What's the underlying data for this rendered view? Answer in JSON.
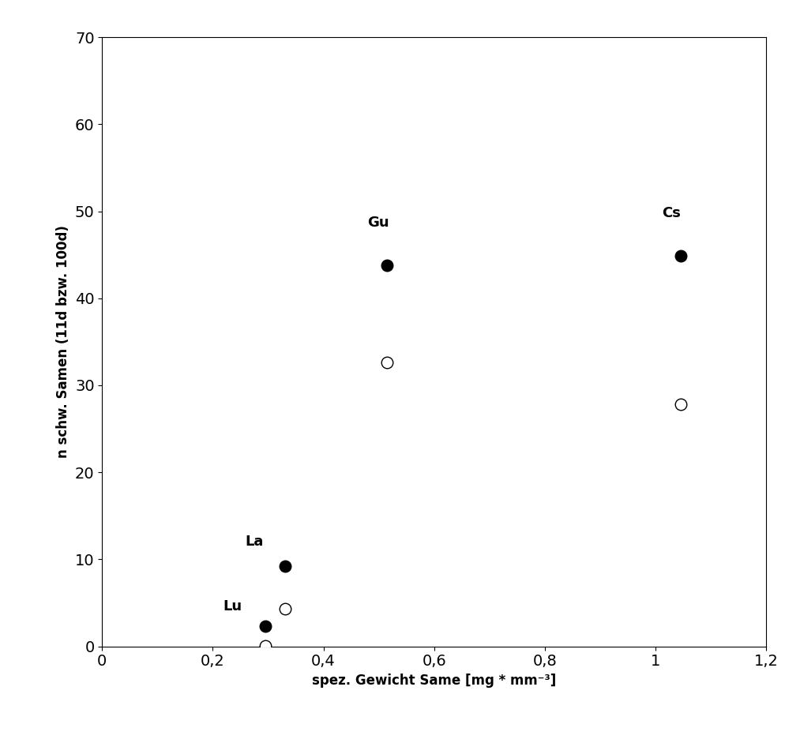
{
  "chart_data": {
    "type": "scatter",
    "x_label": "spez. Gewicht Same [mg * mm⁻³]",
    "y_label": "n schw. Samen (11d bzw. 100d)",
    "x": [
      0.295,
      0.33,
      0.515,
      1.045
    ],
    "point_labels": [
      "Lu",
      "La",
      "Gu",
      "Cs"
    ],
    "series": [
      {
        "values": [
          2.3,
          9.2,
          43.8,
          44.9
        ],
        "color": "#000000",
        "marker": "filled_circle"
      },
      {
        "values": [
          0.1,
          4.3,
          32.6,
          27.8
        ],
        "color": "#000000",
        "marker": "open_circle"
      }
    ],
    "xlim": [
      0,
      1.2
    ],
    "xticks": [
      0,
      {
        "value": 0.2,
        "label": "0,2"
      },
      {
        "value": 0.4,
        "label": "0,4"
      },
      {
        "value": 0.6,
        "label": "0,6"
      },
      {
        "value": 0.8,
        "label": "0,8"
      },
      1,
      {
        "value": 1.2,
        "label": "1,2"
      }
    ],
    "ylim": [
      0,
      70
    ],
    "yticks": [
      0,
      10,
      20,
      30,
      40,
      50,
      60,
      70
    ],
    "grid": false
  }
}
